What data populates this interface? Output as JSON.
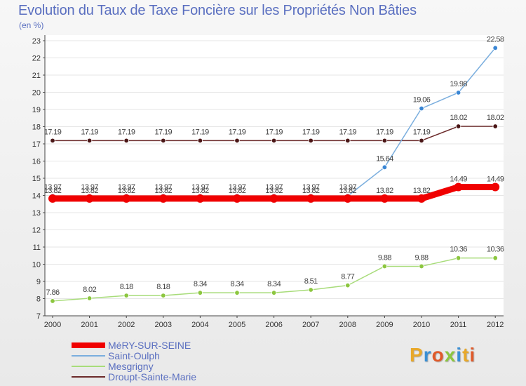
{
  "chart_data": {
    "type": "line",
    "title": "Evolution du Taux de Taxe Foncière sur les Propriétés Non Bâties",
    "xlabel": "",
    "ylabel": "(en %)",
    "ylim": [
      7,
      23
    ],
    "yticks": [
      7,
      8,
      9,
      10,
      11,
      12,
      13,
      14,
      15,
      16,
      17,
      18,
      19,
      20,
      21,
      22,
      23
    ],
    "categories": [
      "2000",
      "2001",
      "2002",
      "2003",
      "2004",
      "2005",
      "2006",
      "2007",
      "2008",
      "2009",
      "2010",
      "2011",
      "2012"
    ],
    "series": [
      {
        "name": "Droupt-Sainte-Marie",
        "color": "#6b2a2a",
        "marker": "#4a1616",
        "values": [
          17.19,
          17.19,
          17.19,
          17.19,
          17.19,
          17.19,
          17.19,
          17.19,
          17.19,
          17.19,
          17.19,
          18.02,
          18.02
        ],
        "labels": [
          "17.19",
          "17.19",
          "17.19",
          "17.19",
          "17.19",
          "17.19",
          "17.19",
          "17.19",
          "17.19",
          "17.19",
          "17.19",
          "18.02",
          "18.02"
        ]
      },
      {
        "name": "Mesgrigny",
        "color": "#a8dc7a",
        "marker": "#8cc63f",
        "values": [
          7.86,
          8.02,
          8.18,
          8.18,
          8.34,
          8.34,
          8.34,
          8.51,
          8.77,
          9.88,
          9.88,
          10.36,
          10.36
        ],
        "labels": [
          "7.86",
          "8.02",
          "8.18",
          "8.18",
          "8.34",
          "8.34",
          "8.34",
          "8.51",
          "8.77",
          "9.88",
          "9.88",
          "10.36",
          "10.36"
        ]
      },
      {
        "name": "Saint-Oulph",
        "color": "#7aaede",
        "marker": "#3a86d4",
        "values": [
          13.97,
          13.97,
          13.97,
          13.97,
          13.97,
          13.97,
          13.97,
          13.97,
          13.97,
          15.64,
          19.06,
          19.98,
          22.58
        ],
        "labels": [
          "13.97",
          "13.97",
          "13.97",
          "13.97",
          "13.97",
          "13.97",
          "13.97",
          "13.97",
          "13.97",
          "15.64",
          "19.06",
          "19.98",
          "22.58"
        ]
      },
      {
        "name": "MéRY-SUR-SEINE",
        "color": "#f00000",
        "marker": "#f00000",
        "values": [
          13.82,
          13.82,
          13.82,
          13.82,
          13.82,
          13.82,
          13.82,
          13.82,
          13.82,
          13.82,
          13.82,
          14.49,
          14.49
        ],
        "labels": [
          "13.82",
          "13.82",
          "13.82",
          "13.82",
          "13.82",
          "13.82",
          "13.82",
          "13.82",
          "13.82",
          "13.82",
          "13.82",
          "14.49",
          "14.49"
        ]
      }
    ],
    "legend": [
      "MéRY-SUR-SEINE",
      "Saint-Oulph",
      "Mesgrigny",
      "Droupt-Sainte-Marie"
    ],
    "legend_colors": [
      "#f00000",
      "#7aaede",
      "#a8dc7a",
      "#6b2a2a"
    ],
    "legend_position": "bottom-left",
    "logo": "Proxiti"
  }
}
